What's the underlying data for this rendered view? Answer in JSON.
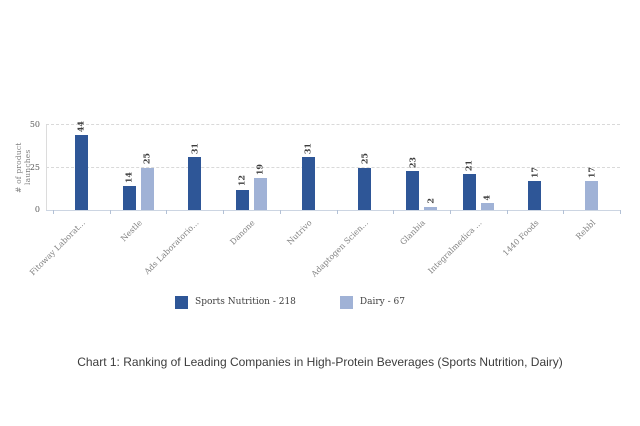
{
  "page": {
    "background": "#ffffff"
  },
  "chart_data": {
    "type": "bar",
    "title": "Chart 1: Ranking of Leading Companies in High-Protein Beverages (Sports Nutrition, Dairy)",
    "ylabel": "# of product launches",
    "ylim": [
      0,
      50
    ],
    "yticks": [
      0,
      25,
      50
    ],
    "grid": "horizontal-dashed",
    "grid_color": "#d9d9d9",
    "legend_position": "bottom",
    "categories": [
      "Fitoway Laborat...",
      "Nestle",
      "Ads Laboratorio...",
      "Danone",
      "Nutrivo",
      "Adaptogen Scien...",
      "Glanbia",
      "Integralmedica ...",
      "1440 Foods",
      "Rebbl"
    ],
    "series": [
      {
        "name": "Sports Nutrition",
        "total": 218,
        "legend_label": "Sports Nutrition - 218",
        "color": "#2e5697",
        "values": [
          44,
          14,
          31,
          12,
          31,
          25,
          23,
          21,
          17,
          null
        ]
      },
      {
        "name": "Dairy",
        "total": 67,
        "legend_label": "Dairy - 67",
        "color": "#a0b2d6",
        "values": [
          null,
          25,
          null,
          19,
          null,
          null,
          2,
          4,
          null,
          17
        ]
      }
    ]
  }
}
